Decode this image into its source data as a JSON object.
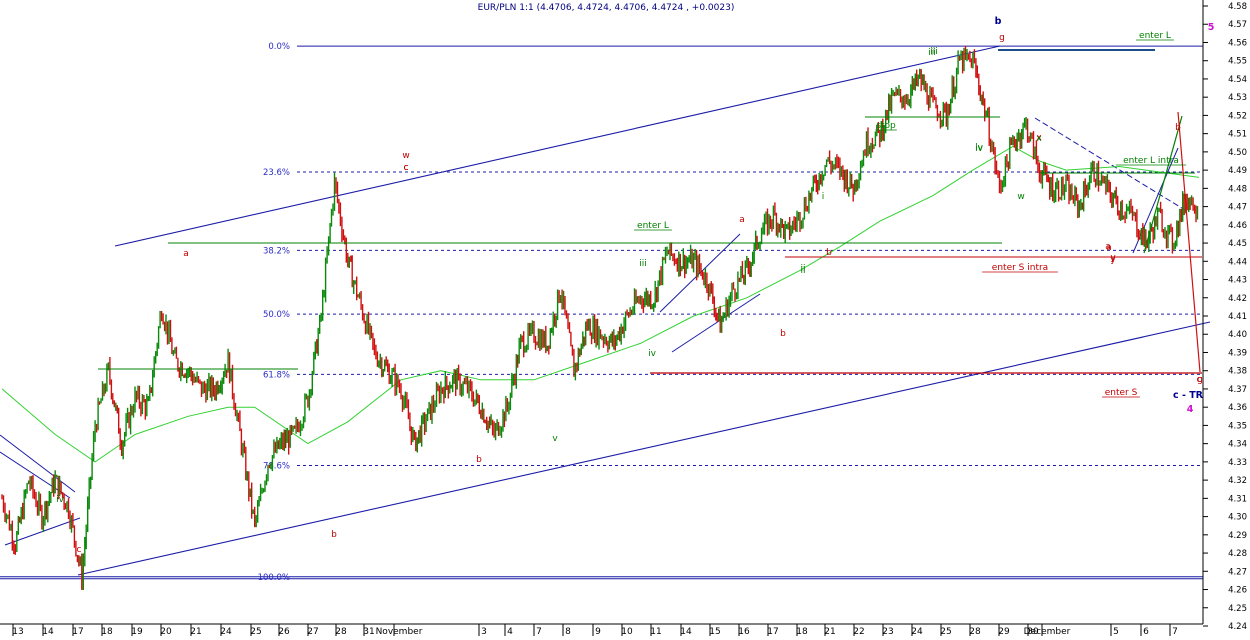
{
  "header": {
    "text": "EUR/PLN 1:1 (4.4706, 4.4724, 4.4706, 4.4724 , +0.0023)"
  },
  "chart_data": {
    "type": "line",
    "title": "EUR/PLN 1:1 (4.4706, 4.4724, 4.4706, 4.4724 , +0.0023)",
    "ylim": [
      4.24,
      4.58
    ],
    "y_ticks": [
      "4.58",
      "4.57",
      "4.56",
      "4.55",
      "4.54",
      "4.53",
      "4.52",
      "4.51",
      "4.50",
      "4.49",
      "4.48",
      "4.47",
      "4.46",
      "4.45",
      "4.44",
      "4.43",
      "4.42",
      "4.41",
      "4.40",
      "4.39",
      "4.38",
      "4.37",
      "4.36",
      "4.35",
      "4.34",
      "4.33",
      "4.32",
      "4.31",
      "4.30",
      "4.29",
      "4.28",
      "4.27",
      "4.26",
      "4.25",
      "4.24"
    ],
    "x_ticks": [
      "13",
      "14",
      "17",
      "18",
      "19",
      "20",
      "21",
      "24",
      "25",
      "26",
      "27",
      "28",
      "31",
      "November",
      "3",
      "4",
      "7",
      "8",
      "9",
      "10",
      "11",
      "14",
      "15",
      "16",
      "17",
      "18",
      "21",
      "22",
      "23",
      "24",
      "25",
      "28",
      "29",
      "30",
      "December",
      "5",
      "6",
      "7"
    ],
    "price_series": {
      "name": "EUR/PLN",
      "anchors": [
        [
          0,
          4.31
        ],
        [
          1,
          4.285
        ],
        [
          2,
          4.32
        ],
        [
          3,
          4.3
        ],
        [
          4,
          4.32
        ],
        [
          5,
          4.305
        ],
        [
          6,
          4.267
        ],
        [
          7,
          4.35
        ],
        [
          8,
          4.38
        ],
        [
          9,
          4.34
        ],
        [
          10,
          4.365
        ],
        [
          11,
          4.36
        ],
        [
          12,
          4.415
        ],
        [
          13,
          4.385
        ],
        [
          14,
          4.38
        ],
        [
          15,
          4.37
        ],
        [
          16,
          4.37
        ],
        [
          17,
          4.385
        ],
        [
          18,
          4.34
        ],
        [
          19,
          4.295
        ],
        [
          20,
          4.33
        ],
        [
          21,
          4.34
        ],
        [
          22,
          4.345
        ],
        [
          23,
          4.365
        ],
        [
          24,
          4.41
        ],
        [
          25,
          4.483
        ],
        [
          26,
          4.44
        ],
        [
          27,
          4.415
        ],
        [
          28,
          4.39
        ],
        [
          29,
          4.38
        ],
        [
          30,
          4.37
        ],
        [
          31,
          4.34
        ],
        [
          32,
          4.355
        ],
        [
          33,
          4.37
        ],
        [
          34,
          4.375
        ],
        [
          35,
          4.37
        ],
        [
          36,
          4.36
        ],
        [
          37,
          4.345
        ],
        [
          38,
          4.36
        ],
        [
          39,
          4.395
        ],
        [
          40,
          4.4
        ],
        [
          41,
          4.395
        ],
        [
          42,
          4.425
        ],
        [
          43,
          4.38
        ],
        [
          44,
          4.405
        ],
        [
          45,
          4.4
        ],
        [
          46,
          4.395
        ],
        [
          47,
          4.41
        ],
        [
          48,
          4.42
        ],
        [
          49,
          4.42
        ],
        [
          50,
          4.445
        ],
        [
          51,
          4.44
        ],
        [
          52,
          4.44
        ],
        [
          53,
          4.43
        ],
        [
          54,
          4.405
        ],
        [
          55,
          4.425
        ],
        [
          56,
          4.435
        ],
        [
          57,
          4.455
        ],
        [
          58,
          4.465
        ],
        [
          59,
          4.455
        ],
        [
          60,
          4.465
        ],
        [
          61,
          4.48
        ],
        [
          62,
          4.495
        ],
        [
          63,
          4.49
        ],
        [
          64,
          4.48
        ],
        [
          65,
          4.505
        ],
        [
          66,
          4.51
        ],
        [
          67,
          4.53
        ],
        [
          68,
          4.53
        ],
        [
          69,
          4.54
        ],
        [
          70,
          4.525
        ],
        [
          71,
          4.52
        ],
        [
          72,
          4.55
        ],
        [
          73,
          4.55
        ],
        [
          74,
          4.52
        ],
        [
          75,
          4.48
        ],
        [
          76,
          4.505
        ],
        [
          77,
          4.515
        ],
        [
          78,
          4.49
        ],
        [
          79,
          4.48
        ],
        [
          80,
          4.48
        ],
        [
          81,
          4.47
        ],
        [
          82,
          4.49
        ],
        [
          83,
          4.48
        ],
        [
          84,
          4.47
        ],
        [
          85,
          4.465
        ],
        [
          86,
          4.45
        ],
        [
          87,
          4.465
        ],
        [
          88,
          4.45
        ],
        [
          89,
          4.475
        ],
        [
          90,
          4.47
        ]
      ]
    },
    "moving_average": {
      "anchors": [
        [
          0,
          4.37
        ],
        [
          4,
          4.345
        ],
        [
          7,
          4.33
        ],
        [
          10,
          4.345
        ],
        [
          14,
          4.355
        ],
        [
          17,
          4.36
        ],
        [
          19,
          4.36
        ],
        [
          23,
          4.34
        ],
        [
          26,
          4.352
        ],
        [
          30,
          4.375
        ],
        [
          33,
          4.38
        ],
        [
          36,
          4.375
        ],
        [
          40,
          4.375
        ],
        [
          44,
          4.385
        ],
        [
          48,
          4.395
        ],
        [
          52,
          4.41
        ],
        [
          56,
          4.42
        ],
        [
          60,
          4.435
        ],
        [
          63,
          4.448
        ],
        [
          66,
          4.462
        ],
        [
          70,
          4.476
        ],
        [
          73,
          4.49
        ],
        [
          76,
          4.503
        ],
        [
          78,
          4.495
        ],
        [
          80,
          4.49
        ],
        [
          84,
          4.492
        ],
        [
          88,
          4.488
        ],
        [
          90,
          4.486
        ]
      ]
    },
    "fibonacci_levels": [
      {
        "label": "0.0%",
        "value": 4.558
      },
      {
        "label": "23.6%",
        "value": 4.489
      },
      {
        "label": "38.2%",
        "value": 4.446
      },
      {
        "label": "50.0%",
        "value": 4.411
      },
      {
        "label": "61.8%",
        "value": 4.378
      },
      {
        "label": "78.6%",
        "value": 4.328
      },
      {
        "label": "100.0%",
        "value": 4.267
      }
    ],
    "wave_labels_red": [
      "w",
      "c",
      "a",
      "a",
      "b",
      "b",
      "b",
      "b",
      "c",
      "x",
      "a",
      "y",
      "g",
      "c",
      "y",
      "b",
      "g",
      "a",
      "c"
    ],
    "wave_labels_green": [
      "iv",
      "iii",
      "iv",
      "ii",
      "iii",
      "i",
      "iv",
      "v",
      "ii",
      "w",
      "x",
      "iv",
      "iii"
    ],
    "trade_labels": [
      {
        "text": "enter L",
        "color": "green"
      },
      {
        "text": "enter L",
        "color": "green"
      },
      {
        "text": "stop",
        "color": "green"
      },
      {
        "text": "enter L intra",
        "color": "green"
      },
      {
        "text": "enter S  intra",
        "color": "red"
      },
      {
        "text": "enter S",
        "color": "red"
      }
    ],
    "extra_labels": {
      "b_top": "b",
      "c_tr": "c - TR",
      "five": "5",
      "four": "4"
    }
  }
}
